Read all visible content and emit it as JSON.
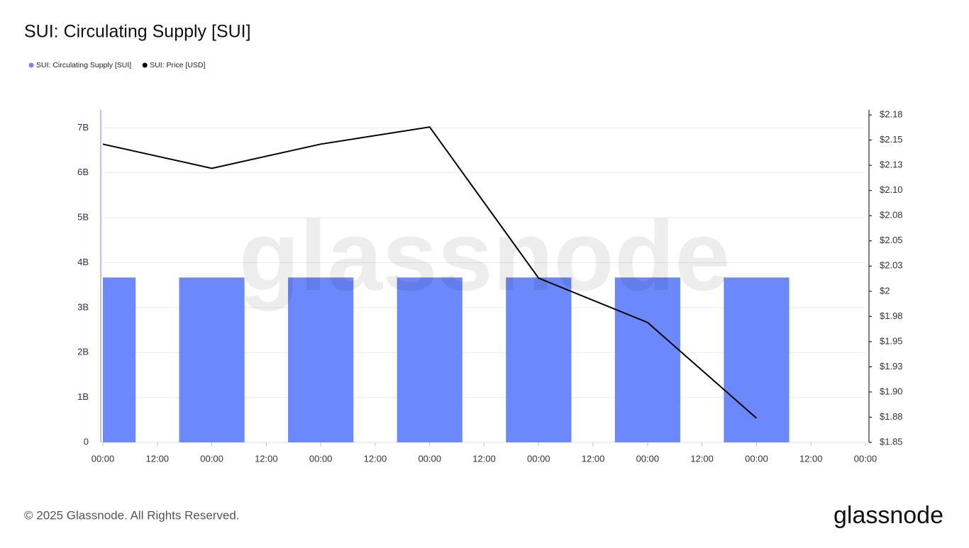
{
  "chart_data": {
    "type": "bar",
    "title": "SUI: Circulating Supply [SUI]",
    "watermark": "glassnode",
    "footer": "© 2025 Glassnode. All Rights Reserved.",
    "logo": "glassnode",
    "x": [
      0,
      24,
      48,
      72,
      96,
      120,
      144
    ],
    "xlim": [
      0,
      168
    ],
    "xticks": [
      {
        "value": 0,
        "label": "00:00"
      },
      {
        "value": 12,
        "label": "12:00"
      },
      {
        "value": 24,
        "label": "00:00"
      },
      {
        "value": 36,
        "label": "12:00"
      },
      {
        "value": 48,
        "label": "00:00"
      },
      {
        "value": 60,
        "label": "12:00"
      },
      {
        "value": 72,
        "label": "00:00"
      },
      {
        "value": 84,
        "label": "12:00"
      },
      {
        "value": 96,
        "label": "00:00"
      },
      {
        "value": 108,
        "label": "12:00"
      },
      {
        "value": 120,
        "label": "00:00"
      },
      {
        "value": 132,
        "label": "12:00"
      },
      {
        "value": 144,
        "label": "00:00"
      },
      {
        "value": 156,
        "label": "12:00"
      },
      {
        "value": 168,
        "label": "00:00"
      }
    ],
    "ylim": [
      0,
      7400000000
    ],
    "yticks": [
      0,
      {
        "value": 1000000000,
        "label": "1B"
      },
      {
        "value": 2000000000,
        "label": "2B"
      },
      {
        "value": 3000000000,
        "label": "3B"
      },
      {
        "value": 4000000000,
        "label": "4B"
      },
      {
        "value": 5000000000,
        "label": "5B"
      },
      {
        "value": 6000000000,
        "label": "6B"
      },
      {
        "value": 7000000000,
        "label": "7B"
      }
    ],
    "y2lim": [
      1.85,
      2.18
    ],
    "y2ticks": [
      {
        "value": 1.85,
        "label": "$1.85"
      },
      {
        "value": 1.875,
        "label": "$1.88"
      },
      {
        "value": 1.9,
        "label": "$1.90"
      },
      {
        "value": 1.925,
        "label": "$1.93"
      },
      {
        "value": 1.95,
        "label": "$1.95"
      },
      {
        "value": 1.975,
        "label": "$1.98"
      },
      {
        "value": 2.0,
        "label": "$2"
      },
      {
        "value": 2.025,
        "label": "$2.03"
      },
      {
        "value": 2.05,
        "label": "$2.05"
      },
      {
        "value": 2.075,
        "label": "$2.08"
      },
      {
        "value": 2.1,
        "label": "$2.10"
      },
      {
        "value": 2.125,
        "label": "$2.13"
      },
      {
        "value": 2.15,
        "label": "$2.15"
      },
      {
        "value": 2.175,
        "label": "$2.18"
      }
    ],
    "grid": true,
    "series": [
      {
        "name": "SUI: Circulating Supply [SUI]",
        "type": "bar",
        "color": "#6b88fc",
        "values": [
          3670000000,
          3670000000,
          3670000000,
          3670000000,
          3670000000,
          3670000000,
          3670000000
        ]
      },
      {
        "name": "SUI: Price [USD]",
        "type": "line",
        "axis": "y2",
        "color": "#000000",
        "values": [
          2.146,
          2.122,
          2.146,
          2.163,
          2.013,
          1.969,
          1.874
        ]
      }
    ]
  }
}
